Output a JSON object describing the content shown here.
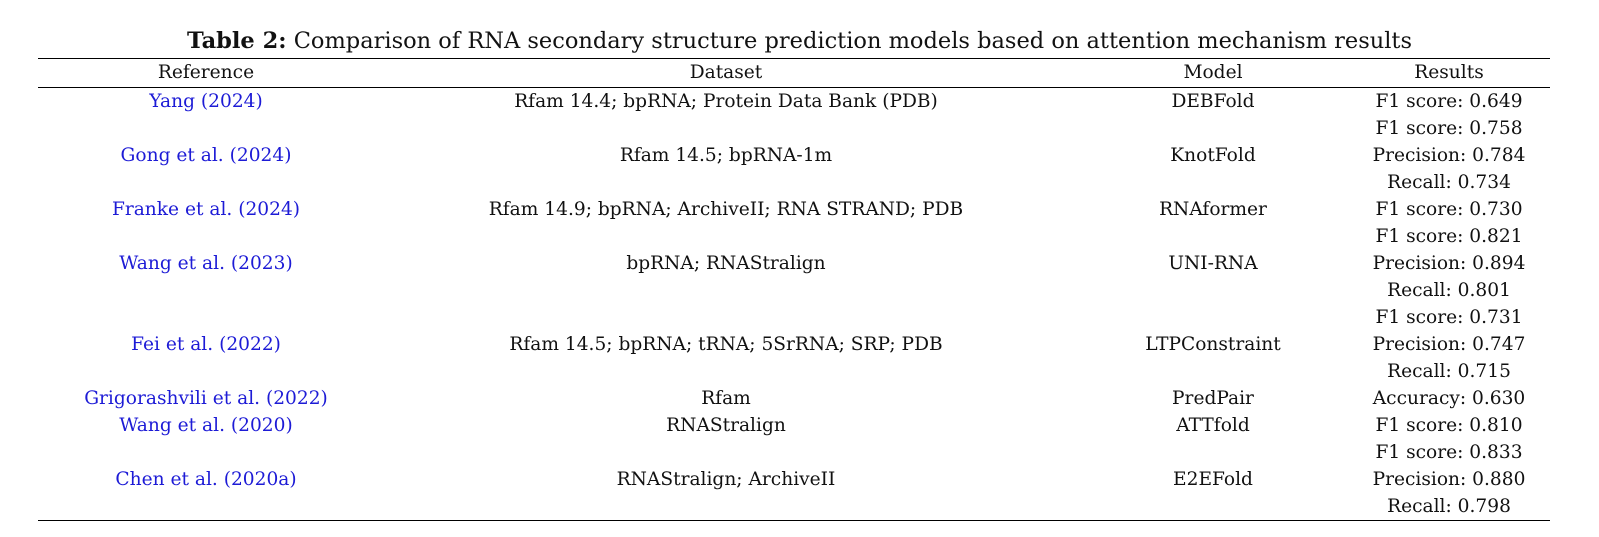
{
  "caption": {
    "label": "Table 2:",
    "text": "Comparison of RNA secondary structure prediction models based on attention mechanism results"
  },
  "headers": [
    "Reference",
    "Dataset",
    "Model",
    "Results"
  ],
  "rows": [
    {
      "reference": "Yang (2024)",
      "dataset": "Rfam 14.4; bpRNA; Protein Data Bank (PDB)",
      "model": "DEBFold",
      "results": [
        "F1 score: 0.649"
      ]
    },
    {
      "reference": "Gong et al. (2024)",
      "dataset": "Rfam 14.5; bpRNA-1m",
      "model": "KnotFold",
      "results": [
        "F1 score: 0.758",
        "Precision: 0.784",
        "Recall: 0.734"
      ]
    },
    {
      "reference": "Franke et al. (2024)",
      "dataset": "Rfam 14.9; bpRNA; ArchiveII; RNA STRAND; PDB",
      "model": "RNAformer",
      "results": [
        "F1 score: 0.730"
      ]
    },
    {
      "reference": "Wang et al. (2023)",
      "dataset": "bpRNA; RNAStralign",
      "model": "UNI-RNA",
      "results": [
        "F1 score: 0.821",
        "Precision: 0.894",
        "Recall: 0.801"
      ]
    },
    {
      "reference": "Fei et al. (2022)",
      "dataset": "Rfam 14.5; bpRNA; tRNA; 5SrRNA; SRP; PDB",
      "model": "LTPConstraint",
      "results": [
        "F1 score: 0.731",
        "Precision: 0.747",
        "Recall: 0.715"
      ]
    },
    {
      "reference": "Grigorashvili et al. (2022)",
      "dataset": "Rfam",
      "model": "PredPair",
      "results": [
        "Accuracy: 0.630"
      ]
    },
    {
      "reference": "Wang et al. (2020)",
      "dataset": "RNAStralign",
      "model": "ATTfold",
      "results": [
        "F1 score: 0.810"
      ]
    },
    {
      "reference": "Chen et al. (2020a)",
      "dataset": "RNAStralign; ArchiveII",
      "model": "E2EFold",
      "results": [
        "F1 score: 0.833",
        "Precision: 0.880",
        "Recall: 0.798"
      ]
    }
  ],
  "colors": {
    "reference_link": "#1d1bd6",
    "text": "#111111",
    "rule": "#000000"
  }
}
